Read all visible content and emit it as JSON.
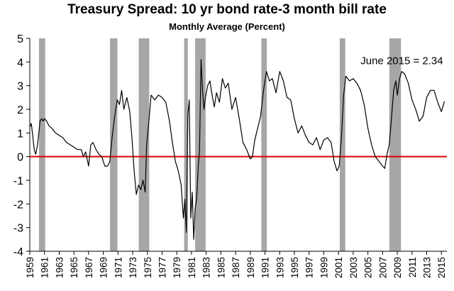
{
  "chart_data": {
    "type": "line",
    "title": "Treasury Spread: 10 yr bond rate-3 month bill rate",
    "subtitle": "Monthly Average (Percent)",
    "xlabel": "",
    "ylabel": "",
    "xlim": [
      1959.0,
      2015.75
    ],
    "ylim": [
      -4,
      5
    ],
    "y_ticks": [
      -4,
      -3,
      -2,
      -1,
      0,
      1,
      2,
      3,
      4,
      5
    ],
    "y_tick_labels": [
      "-4",
      "-3",
      "-2",
      "-1",
      "0",
      "1",
      "2",
      "3",
      "4",
      "5"
    ],
    "x_tick_labels": [
      "1959",
      "1961",
      "1963",
      "1965",
      "1967",
      "1969",
      "1971",
      "1973",
      "1975",
      "1977",
      "1979",
      "1981",
      "1983",
      "1985",
      "1987",
      "1989",
      "1991",
      "1993",
      "1995",
      "1997",
      "1999",
      "2001",
      "2003",
      "2005",
      "2007",
      "2009",
      "2011",
      "2013",
      "2015"
    ],
    "grid": false,
    "reference_line": {
      "y": 0,
      "color": "#dd0000"
    },
    "recession_color": "#a6a6a6",
    "line_color": "#000000",
    "recessions": [
      [
        1960.25,
        1961.1
      ],
      [
        1969.92,
        1970.92
      ],
      [
        1973.83,
        1975.25
      ],
      [
        1980.0,
        1980.5
      ],
      [
        1981.5,
        1982.92
      ],
      [
        1990.5,
        1991.25
      ],
      [
        2001.17,
        2001.92
      ],
      [
        2007.92,
        2009.5
      ]
    ],
    "annotations": [
      {
        "text": "June 2015 = 2.34",
        "x": 2004.0,
        "y": 3.9
      }
    ],
    "series": [
      {
        "x": [
          1959.0,
          1959.2,
          1959.4,
          1959.6,
          1959.8,
          1960.0,
          1960.2,
          1960.4,
          1960.6,
          1960.8,
          1961.0,
          1961.3,
          1961.6,
          1962.0,
          1962.5,
          1963.0,
          1963.5,
          1964.0,
          1964.5,
          1965.0,
          1965.5,
          1966.0,
          1966.3,
          1966.6,
          1967.0,
          1967.3,
          1967.6,
          1968.0,
          1968.4,
          1968.8,
          1969.2,
          1969.6,
          1969.9,
          1970.2,
          1970.5,
          1970.9,
          1971.2,
          1971.5,
          1971.8,
          1972.2,
          1972.6,
          1972.9,
          1973.2,
          1973.5,
          1973.8,
          1974.1,
          1974.4,
          1974.7,
          1974.9,
          1975.2,
          1975.5,
          1976.0,
          1976.5,
          1977.0,
          1977.5,
          1978.0,
          1978.4,
          1978.8,
          1979.2,
          1979.6,
          1979.9,
          1980.1,
          1980.3,
          1980.5,
          1980.7,
          1980.9,
          1981.1,
          1981.3,
          1981.5,
          1981.7,
          1981.9,
          1982.1,
          1982.3,
          1982.5,
          1982.7,
          1982.9,
          1983.2,
          1983.5,
          1983.8,
          1984.1,
          1984.4,
          1984.8,
          1985.2,
          1985.6,
          1986.0,
          1986.5,
          1987.0,
          1987.5,
          1988.0,
          1988.5,
          1989.0,
          1989.3,
          1989.6,
          1990.0,
          1990.4,
          1990.8,
          1991.2,
          1991.6,
          1992.0,
          1992.5,
          1993.0,
          1993.5,
          1994.0,
          1994.5,
          1995.0,
          1995.5,
          1996.0,
          1996.5,
          1997.0,
          1997.5,
          1998.0,
          1998.5,
          1999.0,
          1999.5,
          2000.0,
          2000.4,
          2000.8,
          2001.1,
          2001.4,
          2001.7,
          2002.0,
          2002.5,
          2003.0,
          2003.5,
          2004.0,
          2004.5,
          2005.0,
          2005.5,
          2006.0,
          2006.5,
          2007.0,
          2007.3,
          2007.6,
          2007.9,
          2008.2,
          2008.5,
          2008.8,
          2009.0,
          2009.3,
          2009.6,
          2010.0,
          2010.5,
          2011.0,
          2011.5,
          2012.0,
          2012.5,
          2013.0,
          2013.5,
          2014.0,
          2014.5,
          2015.0,
          2015.42
        ],
        "values": [
          1.25,
          1.4,
          0.9,
          0.3,
          0.1,
          0.4,
          0.9,
          1.5,
          1.6,
          1.5,
          1.6,
          1.5,
          1.3,
          1.2,
          1.0,
          0.9,
          0.8,
          0.6,
          0.5,
          0.4,
          0.3,
          0.3,
          0.0,
          0.2,
          -0.4,
          0.5,
          0.6,
          0.3,
          0.1,
          0.0,
          -0.4,
          -0.4,
          -0.2,
          0.8,
          1.6,
          2.4,
          2.2,
          2.8,
          2.0,
          2.5,
          1.9,
          0.8,
          -0.6,
          -1.6,
          -1.2,
          -1.4,
          -1.0,
          -1.5,
          0.5,
          1.5,
          2.6,
          2.4,
          2.6,
          2.5,
          2.3,
          1.5,
          0.6,
          -0.2,
          -0.6,
          -1.2,
          -2.6,
          -1.8,
          -3.2,
          1.8,
          2.4,
          -2.6,
          -1.5,
          -3.5,
          -2.2,
          -1.8,
          -0.5,
          0.3,
          4.1,
          2.8,
          2.0,
          2.5,
          3.0,
          3.2,
          2.6,
          2.1,
          2.7,
          2.3,
          3.3,
          2.9,
          3.1,
          2.0,
          2.5,
          1.6,
          0.6,
          0.3,
          -0.1,
          0.0,
          0.7,
          1.2,
          1.7,
          2.8,
          3.6,
          3.2,
          3.3,
          2.7,
          3.6,
          3.2,
          2.5,
          2.4,
          1.6,
          1.0,
          1.3,
          0.9,
          0.6,
          0.5,
          0.8,
          0.3,
          0.7,
          0.8,
          0.6,
          -0.2,
          -0.6,
          -0.4,
          0.8,
          2.6,
          3.4,
          3.2,
          3.3,
          3.1,
          2.8,
          2.2,
          1.2,
          0.5,
          0.0,
          -0.2,
          -0.4,
          -0.5,
          0.1,
          0.5,
          1.6,
          2.8,
          3.2,
          2.6,
          3.3,
          3.6,
          3.5,
          3.1,
          2.4,
          2.0,
          1.5,
          1.7,
          2.5,
          2.8,
          2.8,
          2.3,
          1.9,
          2.34
        ]
      }
    ]
  }
}
